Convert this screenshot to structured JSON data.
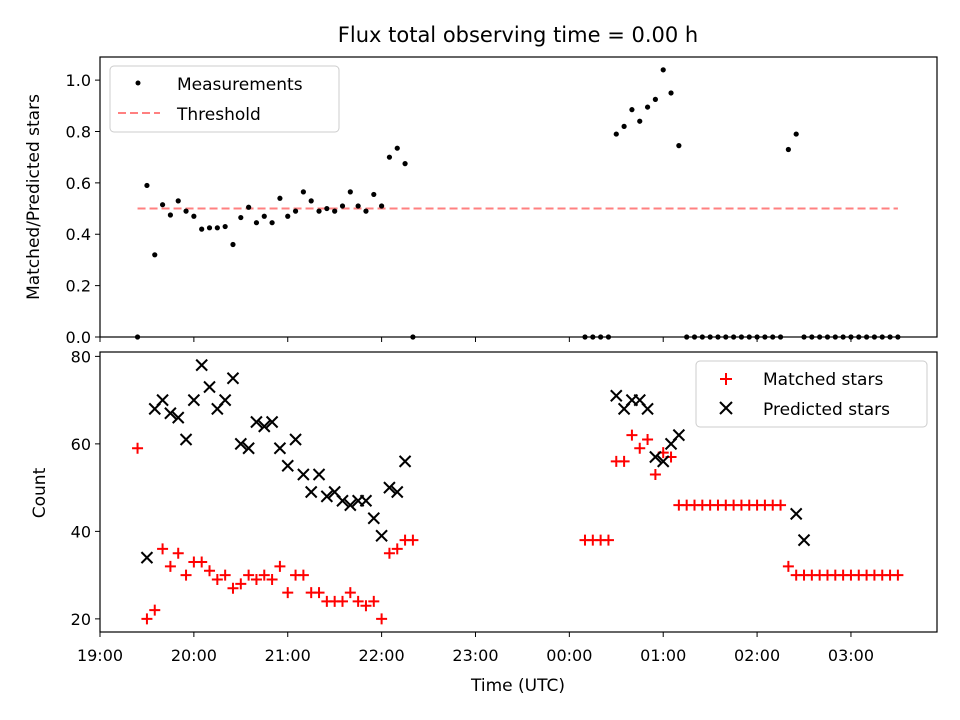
{
  "chart_data": [
    {
      "type": "scatter",
      "title": "Flux total observing time = 0.00 h",
      "xlabel": "",
      "ylabel": "Matched/Predicted stars",
      "ylim": [
        0,
        1.09
      ],
      "xlim": [
        "19:00",
        "03:55"
      ],
      "yticks": [
        "0.0",
        "0.2",
        "0.4",
        "0.6",
        "0.8",
        "1.0"
      ],
      "grid": false,
      "legend_position": "top-left",
      "series": [
        {
          "name": "Measurements",
          "kind": "points",
          "color": "#000000",
          "x": [
            "19:24",
            "19:30",
            "19:35",
            "19:40",
            "19:45",
            "19:50",
            "19:55",
            "20:00",
            "20:05",
            "20:10",
            "20:15",
            "20:20",
            "20:25",
            "20:30",
            "20:35",
            "20:40",
            "20:45",
            "20:50",
            "20:55",
            "21:00",
            "21:05",
            "21:10",
            "21:15",
            "21:20",
            "21:25",
            "21:30",
            "21:35",
            "21:40",
            "21:45",
            "21:50",
            "21:55",
            "22:00",
            "22:05",
            "22:10",
            "22:15",
            "22:20",
            "00:10",
            "00:15",
            "00:20",
            "00:25",
            "00:30",
            "00:35",
            "00:40",
            "00:45",
            "00:50",
            "00:55",
            "01:00",
            "01:05",
            "01:10",
            "01:15",
            "01:20",
            "01:25",
            "01:30",
            "01:35",
            "01:40",
            "01:45",
            "01:50",
            "01:55",
            "02:00",
            "02:05",
            "02:10",
            "02:15",
            "02:20",
            "02:25",
            "02:30",
            "02:35",
            "02:40",
            "02:45",
            "02:50",
            "02:55",
            "03:00",
            "03:05",
            "03:10",
            "03:15",
            "03:20",
            "03:25",
            "03:30"
          ],
          "y": [
            0.0,
            0.59,
            0.32,
            0.515,
            0.475,
            0.53,
            0.49,
            0.47,
            0.42,
            0.425,
            0.425,
            0.43,
            0.36,
            0.465,
            0.505,
            0.445,
            0.47,
            0.445,
            0.54,
            0.47,
            0.49,
            0.565,
            0.53,
            0.49,
            0.5,
            0.49,
            0.51,
            0.565,
            0.51,
            0.49,
            0.555,
            0.51,
            0.7,
            0.735,
            0.675,
            0.0,
            0.0,
            0.0,
            0.0,
            0.0,
            0.79,
            0.82,
            0.885,
            0.84,
            0.895,
            0.925,
            1.04,
            0.95,
            0.745,
            0.0,
            0.0,
            0.0,
            0.0,
            0.0,
            0.0,
            0.0,
            0.0,
            0.0,
            0.0,
            0.0,
            0.0,
            0.0,
            0.73,
            0.79,
            0.0,
            0.0,
            0.0,
            0.0,
            0.0,
            0.0,
            0.0,
            0.0,
            0.0,
            0.0,
            0.0,
            0.0,
            0.0
          ]
        },
        {
          "name": "Threshold",
          "kind": "dashed-line",
          "color": "#ff8080",
          "x": [
            "19:24",
            "03:30"
          ],
          "y": [
            0.5,
            0.5
          ]
        }
      ]
    },
    {
      "type": "scatter",
      "title": "",
      "xlabel": "Time (UTC)",
      "ylabel": "Count",
      "ylim": [
        17,
        81
      ],
      "xlim": [
        "19:00",
        "03:55"
      ],
      "yticks": [
        "20",
        "40",
        "60",
        "80"
      ],
      "xticks": [
        "19:00",
        "20:00",
        "21:00",
        "22:00",
        "23:00",
        "00:00",
        "01:00",
        "02:00",
        "03:00"
      ],
      "grid": false,
      "legend_position": "top-right",
      "series": [
        {
          "name": "Matched stars",
          "marker": "plus",
          "color": "#ff0000",
          "x": [
            "19:24",
            "19:30",
            "19:35",
            "19:40",
            "19:45",
            "19:50",
            "19:55",
            "20:00",
            "20:05",
            "20:10",
            "20:15",
            "20:20",
            "20:25",
            "20:30",
            "20:35",
            "20:40",
            "20:45",
            "20:50",
            "20:55",
            "21:00",
            "21:05",
            "21:10",
            "21:15",
            "21:20",
            "21:25",
            "21:30",
            "21:35",
            "21:40",
            "21:45",
            "21:50",
            "21:55",
            "22:00",
            "22:05",
            "22:10",
            "22:15",
            "22:20",
            "00:10",
            "00:15",
            "00:20",
            "00:25",
            "00:30",
            "00:35",
            "00:40",
            "00:45",
            "00:50",
            "00:55",
            "01:00",
            "01:05",
            "01:10",
            "01:15",
            "01:20",
            "01:25",
            "01:30",
            "01:35",
            "01:40",
            "01:45",
            "01:50",
            "01:55",
            "02:00",
            "02:05",
            "02:10",
            "02:15",
            "02:20",
            "02:25",
            "02:30",
            "02:35",
            "02:40",
            "02:45",
            "02:50",
            "02:55",
            "03:00",
            "03:05",
            "03:10",
            "03:15",
            "03:20",
            "03:25",
            "03:30"
          ],
          "y": [
            59,
            20,
            22,
            36,
            32,
            35,
            30,
            33,
            33,
            31,
            29,
            30,
            27,
            28,
            30,
            29,
            30,
            29,
            32,
            26,
            30,
            30,
            26,
            26,
            24,
            24,
            24,
            26,
            24,
            23,
            24,
            20,
            35,
            36,
            38,
            38,
            38,
            38,
            38,
            38,
            56,
            56,
            62,
            59,
            61,
            53,
            58,
            57,
            46,
            46,
            46,
            46,
            46,
            46,
            46,
            46,
            46,
            46,
            46,
            46,
            46,
            46,
            32,
            30,
            30,
            30,
            30,
            30,
            30,
            30,
            30,
            30,
            30,
            30,
            30,
            30,
            30
          ]
        },
        {
          "name": "Predicted stars",
          "marker": "x",
          "color": "#000000",
          "x": [
            "19:30",
            "19:35",
            "19:40",
            "19:45",
            "19:50",
            "19:55",
            "20:00",
            "20:05",
            "20:10",
            "20:15",
            "20:20",
            "20:25",
            "20:30",
            "20:35",
            "20:40",
            "20:45",
            "20:50",
            "20:55",
            "21:00",
            "21:05",
            "21:10",
            "21:15",
            "21:20",
            "21:25",
            "21:30",
            "21:35",
            "21:40",
            "21:45",
            "21:50",
            "21:55",
            "22:00",
            "22:05",
            "22:10",
            "22:15",
            "00:30",
            "00:35",
            "00:40",
            "00:45",
            "00:50",
            "00:55",
            "01:00",
            "01:05",
            "01:10",
            "02:25",
            "02:30"
          ],
          "y": [
            34,
            68,
            70,
            67,
            66,
            61,
            70,
            78,
            73,
            68,
            70,
            75,
            60,
            59,
            65,
            64,
            65,
            59,
            55,
            61,
            53,
            49,
            53,
            48,
            49,
            47,
            46,
            47,
            47,
            43,
            39,
            50,
            49,
            56,
            71,
            68,
            70,
            70,
            68,
            57,
            56,
            60,
            62,
            44,
            38
          ]
        }
      ]
    }
  ]
}
